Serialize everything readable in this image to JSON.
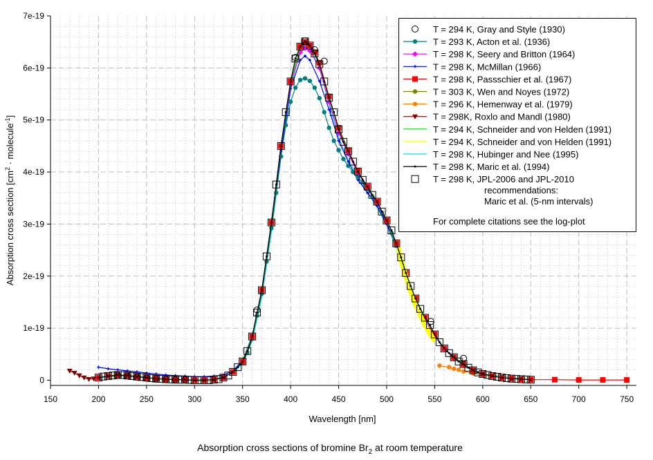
{
  "chart_data": {
    "type": "scatter",
    "title": {
      "before": "Absorption cross sections of bromine Br",
      "sub": "2",
      "after": " at room temperature"
    },
    "xlabel": "Wavelength [nm]",
    "ylabel": {
      "a": "Absorption cross section [cm",
      "sup1": "2",
      "b": " · molecule",
      "sup2": "-1",
      "c": "]"
    },
    "xlim": [
      150,
      760
    ],
    "ylim": [
      -1e-20,
      7e-19
    ],
    "xticks": [
      150,
      200,
      250,
      300,
      350,
      400,
      450,
      500,
      550,
      600,
      650,
      700,
      750
    ],
    "yticks": [
      0,
      1e-19,
      2e-19,
      3e-19,
      4e-19,
      5e-19,
      6e-19,
      7e-19
    ],
    "ytick_labels": [
      "0",
      "1e-19",
      "2e-19",
      "3e-19",
      "4e-19",
      "5e-19",
      "6e-19",
      "7e-19"
    ],
    "grid": {
      "major": "dashed",
      "minor": "dotted"
    },
    "legend_placement": "top-right",
    "legend_note_lines": [
      "recommendations:",
      "Maric et al. (5-nm intervals)"
    ],
    "legend_footer": "For complete citations see the log-plot",
    "series": [
      {
        "name": "T = 294 K, Gray and Style (1930)",
        "color": "#000000",
        "marker": "open-circle",
        "line": false,
        "x": [
          220,
          230,
          240,
          250,
          260,
          270,
          280,
          290,
          365,
          405,
          415,
          425,
          435,
          546,
          580
        ],
        "y": [
          9e-21,
          8e-21,
          6e-21,
          4e-21,
          3e-21,
          2e-21,
          1e-21,
          1e-21,
          1.35e-19,
          6.2e-19,
          6.52e-19,
          6.35e-19,
          6.13e-19,
          1.13e-19,
          4.2e-20
        ]
      },
      {
        "name": "T = 293 K, Acton et al. (1936)",
        "color": "#008080",
        "marker": "filled-circle",
        "line": true,
        "x": [
          350,
          355,
          360,
          365,
          370,
          375,
          380,
          385,
          390,
          395,
          400,
          405,
          410,
          415,
          420,
          425,
          430,
          435,
          440,
          445,
          450,
          455,
          460,
          465,
          470,
          475,
          480,
          485,
          490,
          495,
          500,
          505,
          510,
          515,
          520,
          525,
          530
        ],
        "y": [
          3.3e-20,
          5.3e-20,
          8e-20,
          1.24e-19,
          1.66e-19,
          2.28e-19,
          2.92e-19,
          3.6e-19,
          4.3e-19,
          4.9e-19,
          5.35e-19,
          5.62e-19,
          5.77e-19,
          5.8e-19,
          5.75e-19,
          5.62e-19,
          5.42e-19,
          5.15e-19,
          4.85e-19,
          4.6e-19,
          4.42e-19,
          4.25e-19,
          4.12e-19,
          4e-19,
          3.9e-19,
          3.8e-19,
          3.68e-19,
          3.53e-19,
          3.4e-19,
          3.22e-19,
          3.04e-19,
          2.83e-19,
          2.58e-19,
          2.3e-19,
          2e-19,
          1.7e-19,
          1.45e-19
        ]
      },
      {
        "name": "T = 298 K, Seery and Britton (1964)",
        "color": "#ff00ff",
        "marker": "diamond",
        "line": true,
        "x": [
          340,
          350,
          360,
          370,
          380,
          390,
          400,
          410,
          415,
          420,
          430,
          440,
          450,
          460,
          470,
          480,
          490,
          500,
          510,
          520,
          530,
          540,
          550,
          560,
          570,
          580,
          590,
          600
        ],
        "y": [
          1.6e-20,
          3.6e-20,
          8.4e-20,
          1.73e-19,
          3.03e-19,
          4.5e-19,
          5.7e-19,
          6.3e-19,
          6.38e-19,
          6.33e-19,
          6e-19,
          5.35e-19,
          4.75e-19,
          4.35e-19,
          3.98e-19,
          3.7e-19,
          3.4e-19,
          3.05e-19,
          2.62e-19,
          2e-19,
          1.5e-19,
          1.15e-19,
          8.5e-20,
          6e-20,
          4.3e-20,
          3e-20,
          1.9e-20,
          1.2e-20
        ]
      },
      {
        "name": "T = 298 K, McMillan (1966)",
        "color": "#0000ff",
        "marker": "small-plus",
        "line": true,
        "x": [
          200,
          210,
          220,
          230,
          240,
          250,
          260,
          270,
          280,
          290,
          300,
          310,
          320,
          330,
          340,
          350,
          360,
          370,
          380,
          390,
          400,
          410,
          415,
          420,
          430,
          440,
          450,
          460,
          470,
          480,
          490,
          500,
          510,
          520,
          530,
          540,
          550,
          560,
          570,
          580,
          590,
          600,
          620,
          650
        ],
        "y": [
          2.5e-20,
          2.2e-20,
          2e-20,
          1.8e-20,
          1.6e-20,
          1.4e-20,
          1.2e-20,
          1e-20,
          9e-21,
          8e-21,
          7e-21,
          7e-21,
          8e-21,
          1e-20,
          1.8e-20,
          3.8e-20,
          8.5e-20,
          1.7e-19,
          2.95e-19,
          4.4e-19,
          5.6e-19,
          6.15e-19,
          6.23e-19,
          6.15e-19,
          5.75e-19,
          5.2e-19,
          4.6e-19,
          4.2e-19,
          3.85e-19,
          3.6e-19,
          3.35e-19,
          3e-19,
          2.6e-19,
          2.05e-19,
          1.55e-19,
          1.2e-19,
          8.8e-20,
          6e-20,
          4.3e-20,
          3e-20,
          1.9e-20,
          1.2e-20,
          5e-21,
          1e-21
        ]
      },
      {
        "name": "T = 298 K, Passschier et al. (1967)",
        "color": "#ff0000",
        "marker": "filled-square",
        "line": true,
        "x": [
          200,
          210,
          220,
          230,
          240,
          250,
          260,
          270,
          280,
          290,
          300,
          310,
          320,
          330,
          340,
          350,
          360,
          370,
          380,
          390,
          400,
          410,
          415,
          420,
          425,
          430,
          440,
          450,
          460,
          470,
          480,
          490,
          500,
          510,
          520,
          530,
          540,
          550,
          560,
          570,
          580,
          590,
          600,
          610,
          620,
          630,
          640,
          650,
          675,
          700,
          725,
          750
        ],
        "y": [
          5e-21,
          8e-21,
          1e-20,
          9e-21,
          7e-21,
          5e-21,
          3e-21,
          2e-21,
          1e-21,
          1e-21,
          0,
          0,
          1e-21,
          5e-21,
          1.6e-20,
          3.6e-20,
          8.4e-20,
          1.73e-19,
          3.03e-19,
          4.5e-19,
          5.74e-19,
          6.41e-19,
          6.5e-19,
          6.43e-19,
          6.3e-19,
          6.1e-19,
          5.45e-19,
          4.85e-19,
          4.42e-19,
          4.02e-19,
          3.72e-19,
          3.43e-19,
          3.07e-19,
          2.63e-19,
          2.06e-19,
          1.57e-19,
          1.2e-19,
          8.8e-20,
          6.1e-20,
          4.4e-20,
          3.1e-20,
          1.9e-20,
          1.2e-20,
          8e-21,
          5e-21,
          3e-21,
          2e-21,
          1e-21,
          1e-21,
          5e-22,
          5e-22,
          5e-22
        ]
      },
      {
        "name": "T = 303 K, Wen and Noyes (1972)",
        "color": "#808000",
        "marker": "filled-circle",
        "line": true,
        "x": [
          200,
          210,
          220,
          230,
          240,
          250,
          260,
          270,
          280,
          290,
          300,
          310,
          320,
          330
        ],
        "y": [
          5e-21,
          7e-21,
          9e-21,
          9e-21,
          7e-21,
          5e-21,
          3e-21,
          2e-21,
          1e-21,
          1e-21,
          0,
          0,
          1e-21,
          4e-21
        ]
      },
      {
        "name": "T = 296 K, Hemenway et al. (1979)",
        "color": "#ff8000",
        "marker": "filled-circle",
        "line": true,
        "x": [
          555,
          565,
          570,
          575,
          580,
          590,
          600,
          610,
          620,
          630,
          640,
          650
        ],
        "y": [
          2.8e-20,
          2.5e-20,
          2.2e-20,
          2e-20,
          1.7e-20,
          1.3e-20,
          1e-20,
          7e-21,
          5e-21,
          3e-21,
          2e-21,
          1e-21
        ]
      },
      {
        "name": "T = 298K, Roxlo and Mandl (1980)",
        "color": "#800000",
        "marker": "triangle-down",
        "line": true,
        "x": [
          170,
          175,
          180,
          185,
          190,
          195,
          200
        ],
        "y": [
          1.8e-20,
          1.4e-20,
          9e-21,
          5e-21,
          2e-21,
          3e-21,
          5e-21
        ]
      },
      {
        "name": "T = 294 K, Schneider and von Helden (1991)",
        "color": "#00e000",
        "marker": "none",
        "line": true,
        "x": [
          340,
          350,
          360,
          370,
          380,
          390,
          400,
          410,
          415,
          420,
          430,
          440,
          450,
          460,
          470,
          480,
          490,
          500,
          510,
          520,
          530,
          540,
          550,
          560,
          570,
          580,
          590,
          600,
          620,
          650
        ],
        "y": [
          1.6e-20,
          3.6e-20,
          8.4e-20,
          1.73e-19,
          3.03e-19,
          4.5e-19,
          5.74e-19,
          6.41e-19,
          6.5e-19,
          6.43e-19,
          6.07e-19,
          5.43e-19,
          4.82e-19,
          4.4e-19,
          4.01e-19,
          3.72e-19,
          3.43e-19,
          3.07e-19,
          2.63e-19,
          2.06e-19,
          1.57e-19,
          1.2e-19,
          8.8e-20,
          6.1e-20,
          4.4e-20,
          3.1e-20,
          1.9e-20,
          1.2e-20,
          5e-21,
          1e-21
        ]
      },
      {
        "name": "T = 294 K, Schneider and von Helden (1991)",
        "color": "#ffff00",
        "marker": "none",
        "line": true,
        "band": true,
        "x": [
          512,
          515,
          520,
          525,
          530,
          535,
          540,
          545,
          550
        ],
        "y": [
          2.55e-19,
          2.3e-19,
          2e-19,
          1.7e-19,
          1.45e-19,
          1.25e-19,
          1.05e-19,
          9e-20,
          7.5e-20
        ]
      },
      {
        "name": "T = 298 K, Hubinger and Nee (1995)",
        "color": "#00e0e0",
        "marker": "none",
        "line": true,
        "x": [
          200,
          220,
          240,
          260,
          280,
          300,
          320,
          340,
          350,
          360,
          370,
          380,
          390,
          400,
          410,
          415,
          420,
          430,
          440,
          450,
          460,
          470,
          480,
          490,
          500,
          510,
          520,
          530,
          540,
          550,
          560,
          580,
          600,
          650
        ],
        "y": [
          4e-21,
          8e-21,
          6e-21,
          3e-21,
          1e-21,
          0,
          1e-21,
          1.4e-20,
          3.2e-20,
          7.5e-20,
          1.6e-19,
          2.85e-19,
          4.3e-19,
          5.6e-19,
          6.35e-19,
          6.45e-19,
          6.4e-19,
          6e-19,
          5.3e-19,
          4.65e-19,
          4.25e-19,
          3.9e-19,
          3.62e-19,
          3.32e-19,
          2.98e-19,
          2.55e-19,
          2e-19,
          1.52e-19,
          1.16e-19,
          8.6e-20,
          6e-20,
          3e-20,
          1.2e-20,
          1e-21
        ]
      },
      {
        "name": "T = 298 K, Maric et al. (1994)",
        "color": "#000000",
        "marker": "small-dot",
        "line": true,
        "x": [
          200,
          210,
          220,
          230,
          240,
          250,
          260,
          270,
          280,
          290,
          300,
          310,
          320,
          330,
          340,
          345,
          350,
          355,
          360,
          365,
          370,
          375,
          380,
          385,
          390,
          395,
          400,
          405,
          410,
          415,
          420,
          425,
          430,
          435,
          440,
          445,
          450,
          455,
          460,
          465,
          470,
          475,
          480,
          485,
          490,
          495,
          500,
          505,
          510,
          515,
          520,
          525,
          530,
          535,
          540,
          545,
          550,
          555,
          560,
          565,
          570,
          575,
          580,
          585,
          590,
          595,
          600,
          610,
          620,
          630,
          640,
          650
        ],
        "y": [
          5e-21,
          8e-21,
          1e-20,
          9e-21,
          7e-21,
          5e-21,
          3e-21,
          2e-21,
          1e-21,
          1e-21,
          0,
          0,
          1e-21,
          5e-21,
          1.6e-20,
          2.5e-20,
          3.6e-20,
          5.6e-20,
          8.4e-20,
          1.3e-19,
          1.73e-19,
          2.38e-19,
          3.03e-19,
          3.76e-19,
          4.5e-19,
          5.15e-19,
          5.74e-19,
          6.18e-19,
          6.41e-19,
          6.51e-19,
          6.43e-19,
          6.28e-19,
          6.07e-19,
          5.74e-19,
          5.43e-19,
          5.15e-19,
          4.82e-19,
          4.58e-19,
          4.4e-19,
          4.2e-19,
          4.01e-19,
          3.85e-19,
          3.72e-19,
          3.56e-19,
          3.43e-19,
          3.24e-19,
          3.07e-19,
          2.88e-19,
          2.63e-19,
          2.36e-19,
          2.06e-19,
          1.81e-19,
          1.57e-19,
          1.37e-19,
          1.2e-19,
          1.06e-19,
          8.8e-20,
          7.3e-20,
          6.1e-20,
          5.2e-20,
          4.4e-20,
          3.6e-20,
          3.1e-20,
          2.4e-20,
          1.9e-20,
          1.5e-20,
          1.2e-20,
          8e-21,
          5e-21,
          3e-21,
          2e-21,
          1e-21
        ]
      },
      {
        "name": "T = 298 K, JPL-2006 and JPL-2010",
        "color": "#000000",
        "marker": "open-square",
        "line": false,
        "x": [
          200,
          205,
          210,
          215,
          220,
          225,
          230,
          235,
          240,
          245,
          250,
          255,
          260,
          265,
          270,
          275,
          280,
          285,
          290,
          295,
          300,
          305,
          310,
          315,
          320,
          325,
          330,
          335,
          340,
          345,
          350,
          355,
          360,
          365,
          370,
          375,
          380,
          385,
          390,
          395,
          400,
          405,
          410,
          415,
          420,
          425,
          430,
          435,
          440,
          445,
          450,
          455,
          460,
          465,
          470,
          475,
          480,
          485,
          490,
          495,
          500,
          505,
          510,
          515,
          520,
          525,
          530,
          535,
          540,
          545,
          550,
          555,
          560,
          565,
          570,
          575,
          580,
          585,
          590,
          595,
          600,
          605,
          610,
          615,
          620,
          625,
          630,
          635,
          640,
          645,
          650
        ],
        "y": [
          5e-21,
          7e-21,
          8e-21,
          9e-21,
          1e-20,
          1e-20,
          9e-21,
          8e-21,
          7e-21,
          6e-21,
          5e-21,
          4e-21,
          3e-21,
          2.5e-21,
          2e-21,
          1.5e-21,
          1e-21,
          1e-21,
          1e-21,
          5e-22,
          0,
          0,
          0,
          0,
          1e-21,
          2e-21,
          5e-21,
          9e-21,
          1.6e-20,
          2.5e-20,
          3.6e-20,
          5.6e-20,
          8.4e-20,
          1.3e-19,
          1.73e-19,
          2.38e-19,
          3.03e-19,
          3.76e-19,
          4.5e-19,
          5.15e-19,
          5.74e-19,
          6.18e-19,
          6.41e-19,
          6.51e-19,
          6.43e-19,
          6.28e-19,
          6.07e-19,
          5.74e-19,
          5.43e-19,
          5.15e-19,
          4.82e-19,
          4.58e-19,
          4.4e-19,
          4.2e-19,
          4.01e-19,
          3.85e-19,
          3.72e-19,
          3.56e-19,
          3.43e-19,
          3.24e-19,
          3.07e-19,
          2.88e-19,
          2.63e-19,
          2.36e-19,
          2.06e-19,
          1.81e-19,
          1.57e-19,
          1.37e-19,
          1.2e-19,
          1.06e-19,
          8.8e-20,
          7.3e-20,
          6.1e-20,
          5.2e-20,
          4.4e-20,
          3.6e-20,
          3.1e-20,
          2.4e-20,
          1.9e-20,
          1.5e-20,
          1.2e-20,
          1e-20,
          8e-21,
          6.5e-21,
          5e-21,
          4e-21,
          3e-21,
          2.5e-21,
          2e-21,
          1.5e-21,
          1e-21
        ]
      }
    ],
    "draw_order": [
      7,
      5,
      6,
      10,
      3,
      1,
      2,
      4,
      9,
      8,
      11,
      12,
      0
    ]
  }
}
